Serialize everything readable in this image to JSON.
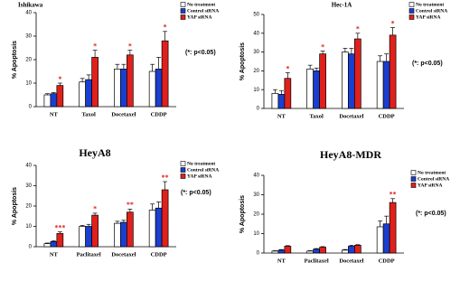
{
  "chart_data": [
    {
      "type": "bar",
      "title": "Ishikawa",
      "y_label": "% Apoptosis",
      "note": "(*: p<0.05)",
      "categories": [
        "NT",
        "Taxol",
        "Docetaxel",
        "CDDP"
      ],
      "series": [
        {
          "name": "No treatment",
          "color": "#ffffff",
          "values": [
            5,
            10.5,
            16,
            15
          ],
          "errors": [
            0.5,
            1.5,
            2,
            3
          ]
        },
        {
          "name": "Control siRNA",
          "color": "#1a3fd0",
          "values": [
            5.5,
            11.5,
            16,
            16
          ],
          "errors": [
            0.5,
            2,
            2,
            5
          ]
        },
        {
          "name": "YAP siRNA",
          "color": "#e0201b",
          "values": [
            9,
            21,
            22,
            28
          ],
          "errors": [
            1,
            3,
            2,
            4
          ]
        }
      ],
      "significance": [
        "*",
        "*",
        "*",
        "*"
      ],
      "ylim": [
        0,
        40
      ],
      "yticks": [
        0,
        10,
        20,
        30,
        40
      ]
    },
    {
      "type": "bar",
      "title": "Hec-1A",
      "y_label": "% Apoptosis",
      "note": "(*: p<0.05)",
      "categories": [
        "NT",
        "Taxol",
        "Docetaxel",
        "CDDP"
      ],
      "series": [
        {
          "name": "No treatment",
          "color": "#ffffff",
          "values": [
            8,
            21,
            30,
            25
          ],
          "errors": [
            2,
            2,
            2,
            3
          ]
        },
        {
          "name": "Control siRNA",
          "color": "#1a3fd0",
          "values": [
            7.5,
            20,
            29,
            25
          ],
          "errors": [
            2,
            1.5,
            3,
            4
          ]
        },
        {
          "name": "YAP siRNA",
          "color": "#e0201b",
          "values": [
            16,
            29,
            37,
            39
          ],
          "errors": [
            3,
            1.5,
            3,
            4
          ]
        }
      ],
      "significance": [
        "*",
        "*",
        "*",
        "*"
      ],
      "ylim": [
        0,
        50
      ],
      "yticks": [
        0,
        10,
        20,
        30,
        40,
        50
      ]
    },
    {
      "type": "bar",
      "title": "HeyA8",
      "y_label": "% Apoptosis",
      "note": "(*: p<0.05)",
      "categories": [
        "NT",
        "Paclitaxel",
        "Docetaxel",
        "CDDP"
      ],
      "series": [
        {
          "name": "No treatment",
          "color": "#ffffff",
          "values": [
            1.5,
            10,
            11.5,
            18
          ],
          "errors": [
            0.3,
            0.5,
            1,
            3
          ]
        },
        {
          "name": "Control siRNA",
          "color": "#1a3fd0",
          "values": [
            2.5,
            10,
            12,
            19
          ],
          "errors": [
            0.5,
            1,
            1,
            3
          ]
        },
        {
          "name": "YAP siRNA",
          "color": "#e0201b",
          "values": [
            6.5,
            15.5,
            17,
            28
          ],
          "errors": [
            0.8,
            1,
            1.5,
            4
          ]
        }
      ],
      "significance": [
        "***",
        "*",
        "**",
        "**"
      ],
      "ylim": [
        0,
        40
      ],
      "yticks": [
        0,
        10,
        20,
        30,
        40
      ]
    },
    {
      "type": "bar",
      "title": "HeyA8-MDR",
      "y_label": "% Apoptosis",
      "note": "(*: p<0.05)",
      "categories": [
        "NT",
        "Paclitaxel",
        "Docetaxel",
        "CDDP"
      ],
      "series": [
        {
          "name": "No treatment",
          "color": "#ffffff",
          "values": [
            1,
            1,
            1.5,
            13.5
          ],
          "errors": [
            0.2,
            0.2,
            0.3,
            3
          ]
        },
        {
          "name": "Control siRNA",
          "color": "#1a3fd0",
          "values": [
            1.5,
            2,
            3.5,
            15
          ],
          "errors": [
            0.3,
            0.3,
            0.5,
            4
          ]
        },
        {
          "name": "YAP siRNA",
          "color": "#e0201b",
          "values": [
            3.5,
            3,
            4,
            26
          ],
          "errors": [
            0.3,
            0.3,
            0.3,
            2
          ]
        }
      ],
      "significance": [
        null,
        null,
        null,
        "**"
      ],
      "ylim": [
        0,
        40
      ],
      "yticks": [
        0,
        10,
        20,
        30,
        40
      ]
    }
  ]
}
